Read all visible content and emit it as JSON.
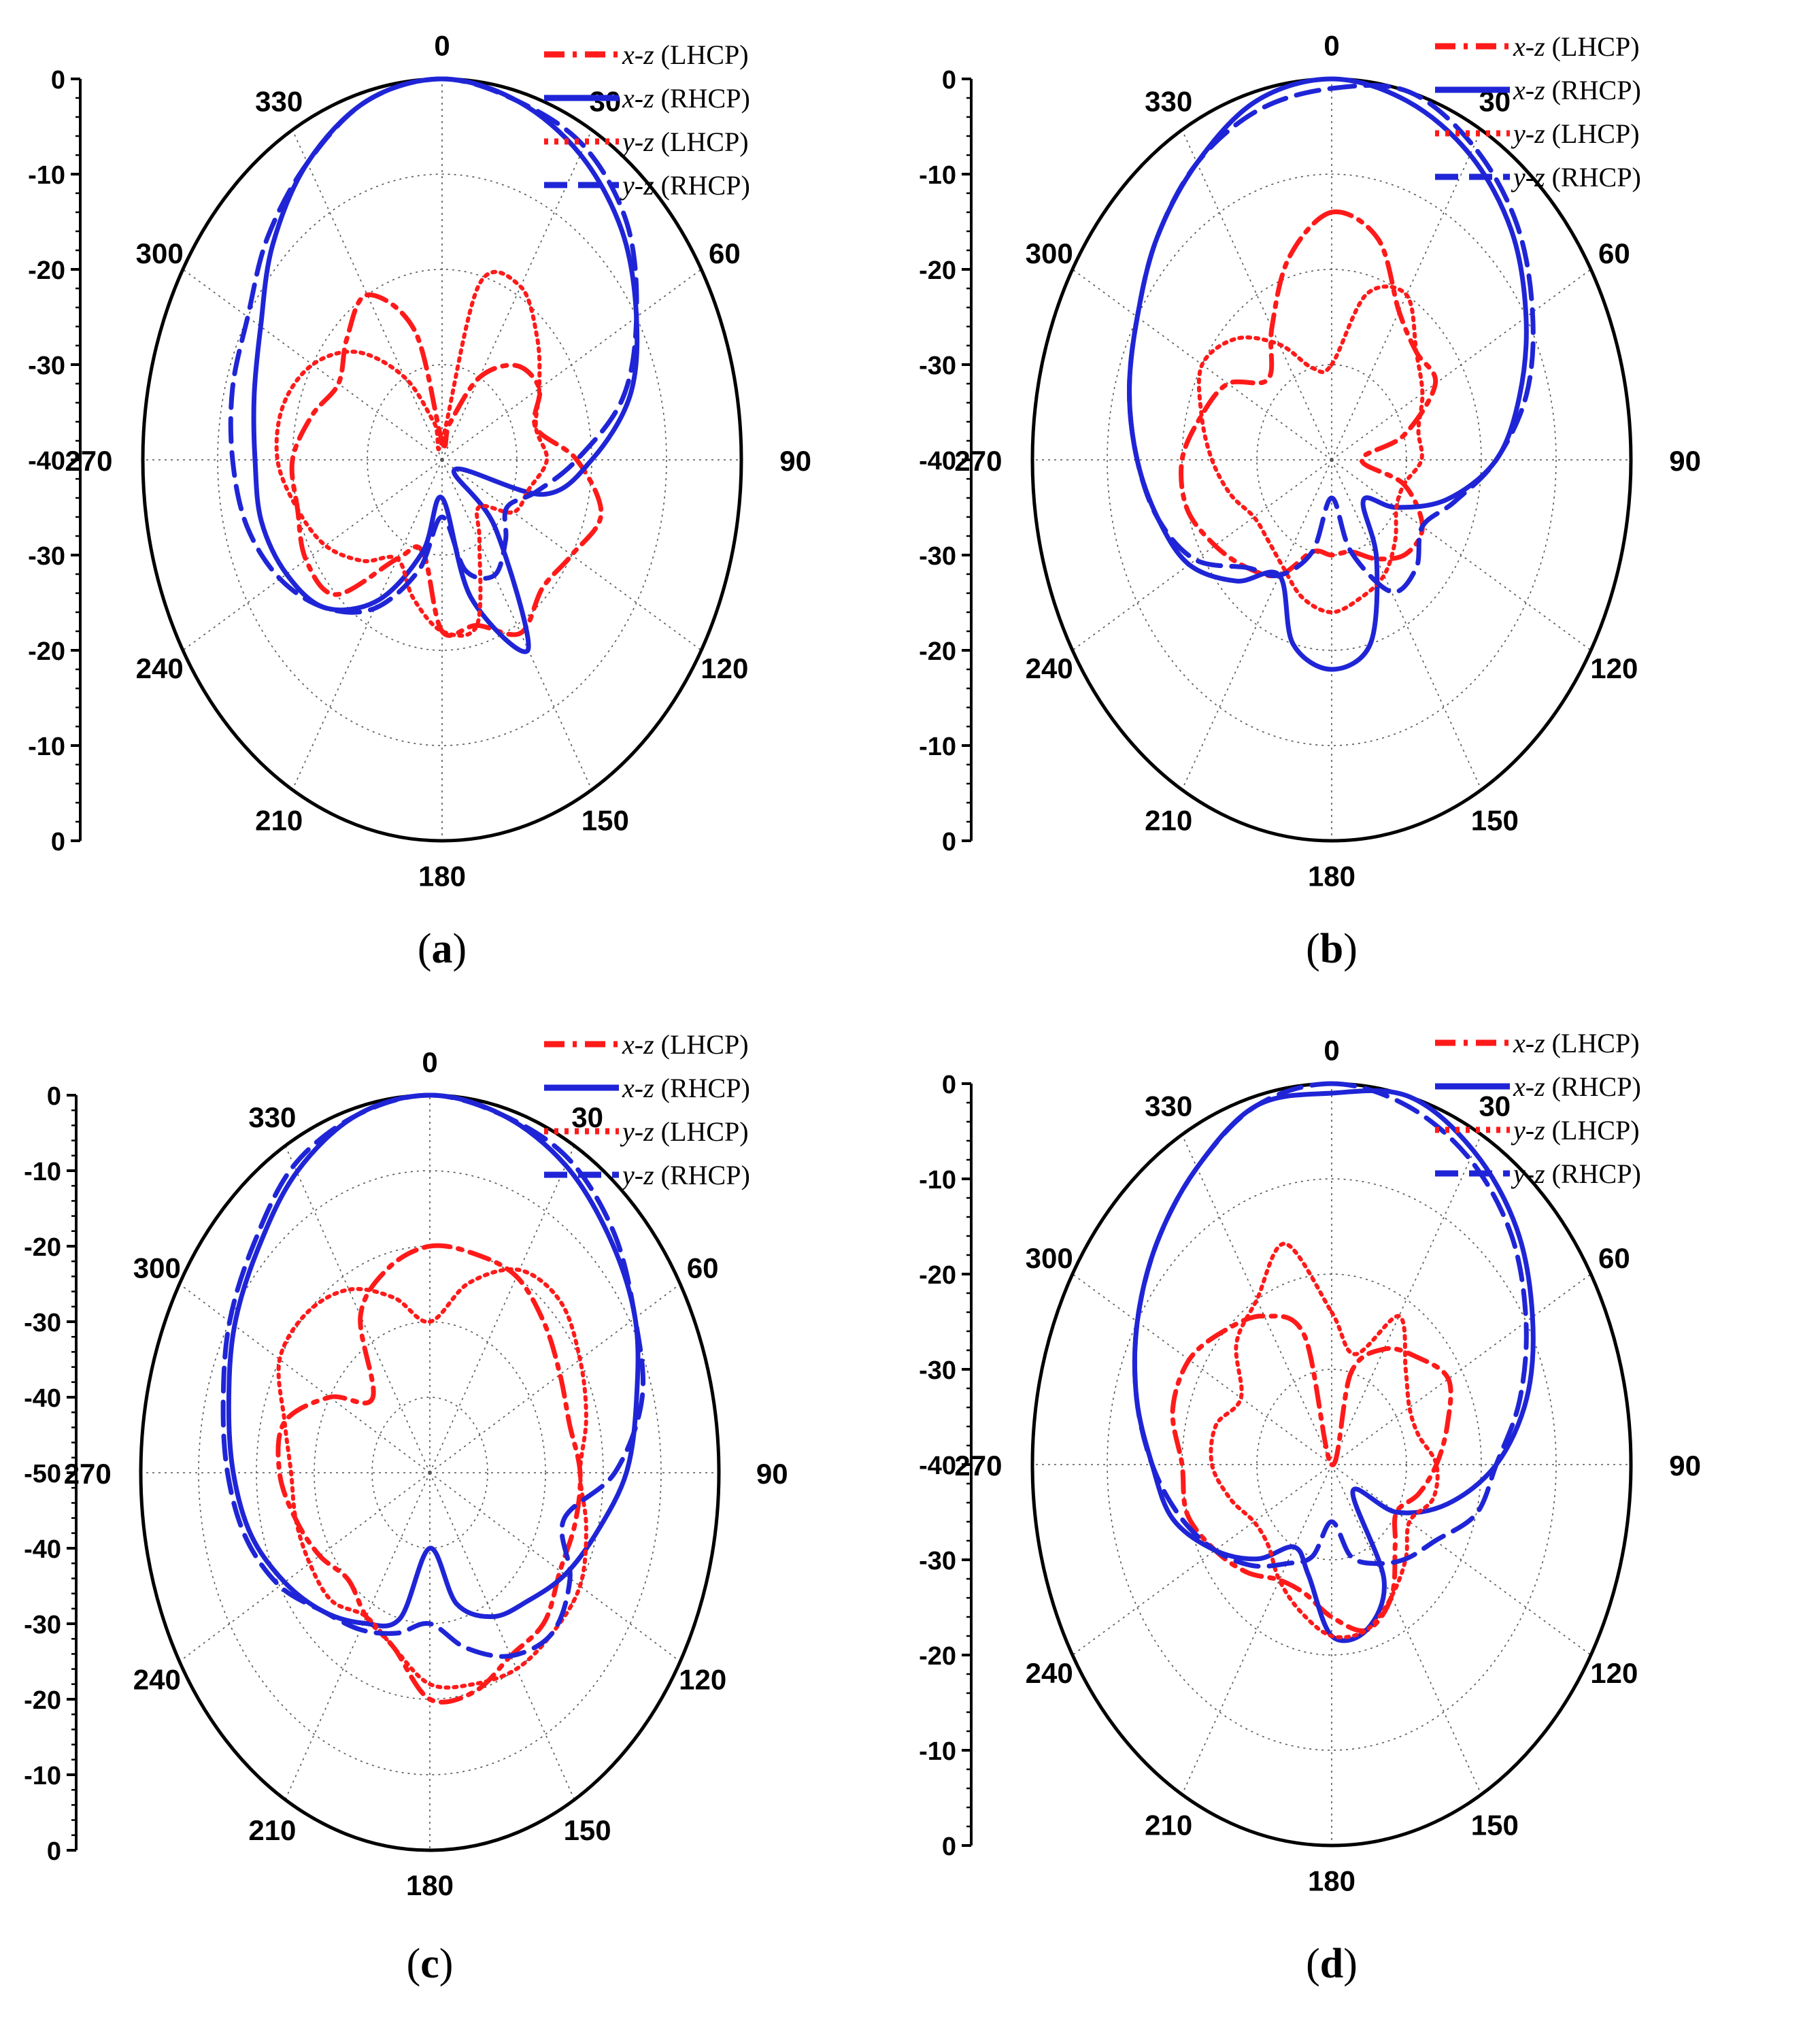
{
  "figure": {
    "colors": {
      "lhcp": "#ff1a1a",
      "rhcp": "#1f25d6",
      "axis": "#000000",
      "grid": "#555555"
    },
    "panel_labels": [
      "(a)",
      "(b)",
      "(c)",
      "(d)"
    ],
    "legend": [
      {
        "plane": "x-z",
        "pol": "(LHCP)",
        "color": "#ff1a1a",
        "dash": "dashdot"
      },
      {
        "plane": "x-z",
        "pol": "(RHCP)",
        "color": "#1f25d6",
        "dash": "solid"
      },
      {
        "plane": "y-z",
        "pol": "(LHCP)",
        "color": "#ff1a1a",
        "dash": "dotted"
      },
      {
        "plane": "y-z",
        "pol": "(RHCP)",
        "color": "#1f25d6",
        "dash": "dashed"
      }
    ],
    "angle_labels": [
      "0",
      "30",
      "60",
      "90",
      "120",
      "150",
      "180",
      "210",
      "240",
      "270",
      "300",
      "330"
    ]
  },
  "chart_data": [
    {
      "type": "polar",
      "panel": "(a)",
      "axis_ticks": [
        "0",
        "-10",
        "-20",
        "-30",
        "-40",
        "-30",
        "-20",
        "-10",
        "0"
      ],
      "r_range_db": [
        -40,
        0
      ],
      "series": [
        {
          "name": "x-z (LHCP)",
          "angles": [
            0,
            15,
            30,
            45,
            60,
            75,
            90,
            105,
            120,
            135,
            150,
            165,
            180,
            195,
            210,
            225,
            240,
            255,
            270,
            285,
            300,
            315,
            330,
            345
          ],
          "values": [
            -38,
            -36,
            -30,
            -26,
            -25,
            -27,
            -22,
            -18,
            -20,
            -21,
            -19,
            -22,
            -22,
            -30,
            -28,
            -20,
            -19,
            -20,
            -20,
            -22,
            -24,
            -22,
            -20,
            -26
          ]
        },
        {
          "name": "x-z (RHCP)",
          "angles": [
            0,
            15,
            30,
            45,
            60,
            75,
            90,
            105,
            120,
            135,
            150,
            165,
            180,
            195,
            210,
            225,
            240,
            255,
            270,
            285,
            300,
            315,
            330,
            345
          ],
          "values": [
            0,
            -1,
            -3,
            -6,
            -10,
            -14,
            -20,
            -26,
            -38,
            -30,
            -17,
            -25,
            -36,
            -30,
            -23,
            -18,
            -16,
            -15,
            -15,
            -14,
            -12,
            -8,
            -4,
            -1
          ]
        },
        {
          "name": "y-z (LHCP)",
          "angles": [
            0,
            15,
            30,
            45,
            60,
            75,
            90,
            105,
            120,
            135,
            150,
            165,
            180,
            195,
            210,
            225,
            240,
            255,
            270,
            285,
            300,
            315,
            330,
            345
          ],
          "values": [
            -38,
            -21,
            -19,
            -22,
            -25,
            -27,
            -26,
            -28,
            -29,
            -33,
            -30,
            -22,
            -22,
            -25,
            -28,
            -25,
            -22,
            -20,
            -18,
            -18,
            -20,
            -24,
            -30,
            -36
          ]
        },
        {
          "name": "y-z (RHCP)",
          "angles": [
            0,
            15,
            30,
            45,
            60,
            75,
            90,
            105,
            120,
            135,
            150,
            165,
            180,
            195,
            210,
            225,
            240,
            255,
            270,
            285,
            300,
            315,
            330,
            345
          ],
          "values": [
            0,
            -1,
            -2,
            -5,
            -10,
            -15,
            -22,
            -27,
            -30,
            -28,
            -26,
            -28,
            -34,
            -28,
            -22,
            -18,
            -15,
            -13,
            -12,
            -11,
            -10,
            -7,
            -4,
            -1
          ]
        }
      ]
    },
    {
      "type": "polar",
      "panel": "(b)",
      "axis_ticks": [
        "0",
        "-10",
        "-20",
        "-30",
        "-40",
        "-30",
        "-20",
        "-10",
        "0"
      ],
      "r_range_db": [
        -40,
        0
      ],
      "series": [
        {
          "name": "x-z (LHCP)",
          "angles": [
            0,
            15,
            30,
            45,
            60,
            75,
            90,
            105,
            120,
            135,
            150,
            165,
            180,
            195,
            210,
            225,
            240,
            255,
            270,
            285,
            300,
            315,
            330,
            345
          ],
          "values": [
            -14,
            -16,
            -22,
            -24,
            -24,
            -30,
            -36,
            -30,
            -26,
            -26,
            -28,
            -30,
            -30,
            -30,
            -26,
            -24,
            -22,
            -20,
            -20,
            -22,
            -24,
            -28,
            -24,
            -18
          ]
        },
        {
          "name": "x-z (RHCP)",
          "angles": [
            0,
            15,
            30,
            45,
            60,
            75,
            90,
            105,
            120,
            135,
            150,
            165,
            180,
            195,
            210,
            225,
            240,
            255,
            270,
            285,
            300,
            315,
            330,
            345
          ],
          "values": [
            0,
            -1,
            -3,
            -6,
            -10,
            -14,
            -18,
            -24,
            -30,
            -34,
            -28,
            -20,
            -18,
            -20,
            -26,
            -22,
            -18,
            -16,
            -14,
            -12,
            -10,
            -7,
            -4,
            -1
          ]
        },
        {
          "name": "y-z (LHCP)",
          "angles": [
            0,
            15,
            30,
            45,
            60,
            75,
            90,
            105,
            120,
            135,
            150,
            165,
            180,
            195,
            210,
            225,
            240,
            255,
            270,
            285,
            300,
            315,
            330,
            345
          ],
          "values": [
            -30,
            -22,
            -20,
            -24,
            -26,
            -28,
            -28,
            -30,
            -30,
            -28,
            -26,
            -25,
            -24,
            -25,
            -27,
            -28,
            -28,
            -26,
            -24,
            -22,
            -20,
            -22,
            -26,
            -30
          ]
        },
        {
          "name": "y-z (RHCP)",
          "angles": [
            0,
            15,
            30,
            45,
            60,
            75,
            90,
            105,
            120,
            135,
            150,
            165,
            180,
            195,
            210,
            225,
            240,
            255,
            270,
            285,
            300,
            315,
            330,
            345
          ],
          "values": [
            -1,
            0,
            -2,
            -5,
            -9,
            -13,
            -18,
            -23,
            -26,
            -24,
            -24,
            -30,
            -36,
            -30,
            -26,
            -24,
            -19,
            -16,
            -14,
            -12,
            -10,
            -7,
            -4,
            -2
          ]
        }
      ]
    },
    {
      "type": "polar",
      "panel": "(c)",
      "axis_ticks": [
        "0",
        "-10",
        "-20",
        "-30",
        "-40",
        "-50",
        "-40",
        "-30",
        "-20",
        "-10",
        "0"
      ],
      "r_range_db": [
        -50,
        0
      ],
      "series": [
        {
          "name": "x-z (LHCP)",
          "angles": [
            0,
            15,
            30,
            45,
            60,
            75,
            90,
            105,
            120,
            135,
            150,
            165,
            180,
            195,
            210,
            225,
            240,
            255,
            270,
            285,
            300,
            315,
            330,
            345
          ],
          "values": [
            -20,
            -20,
            -20,
            -22,
            -24,
            -25,
            -24,
            -24,
            -24,
            -22,
            -22,
            -20,
            -20,
            -26,
            -28,
            -30,
            -28,
            -26,
            -24,
            -24,
            -30,
            -36,
            -26,
            -22
          ]
        },
        {
          "name": "x-z (RHCP)",
          "angles": [
            0,
            15,
            30,
            45,
            60,
            75,
            90,
            105,
            120,
            135,
            150,
            165,
            180,
            195,
            210,
            225,
            240,
            255,
            270,
            285,
            300,
            315,
            330,
            345
          ],
          "values": [
            0,
            -1,
            -3,
            -6,
            -9,
            -13,
            -16,
            -20,
            -23,
            -26,
            -28,
            -32,
            -40,
            -30,
            -27,
            -24,
            -21,
            -18,
            -16,
            -14,
            -11,
            -8,
            -4,
            -1
          ]
        },
        {
          "name": "y-z (LHCP)",
          "angles": [
            0,
            15,
            30,
            45,
            60,
            75,
            90,
            105,
            120,
            135,
            150,
            165,
            180,
            195,
            210,
            225,
            240,
            255,
            270,
            285,
            300,
            315,
            330,
            345
          ],
          "values": [
            -30,
            -24,
            -19,
            -18,
            -20,
            -22,
            -24,
            -22,
            -20,
            -20,
            -20,
            -21,
            -22,
            -26,
            -28,
            -26,
            -26,
            -26,
            -26,
            -24,
            -20,
            -20,
            -22,
            -26
          ]
        },
        {
          "name": "y-z (RHCP)",
          "angles": [
            0,
            15,
            30,
            45,
            60,
            75,
            90,
            105,
            120,
            135,
            150,
            165,
            180,
            195,
            210,
            225,
            240,
            255,
            270,
            285,
            300,
            315,
            330,
            345
          ],
          "values": [
            0,
            -1,
            -2,
            -5,
            -9,
            -12,
            -18,
            -26,
            -22,
            -20,
            -22,
            -26,
            -30,
            -28,
            -26,
            -24,
            -20,
            -17,
            -15,
            -13,
            -10,
            -7,
            -3,
            -1
          ]
        }
      ]
    },
    {
      "type": "polar",
      "panel": "(d)",
      "axis_ticks": [
        "0",
        "-10",
        "-20",
        "-30",
        "-40",
        "-30",
        "-20",
        "-10",
        "0"
      ],
      "r_range_db": [
        -40,
        0
      ],
      "series": [
        {
          "name": "x-z (LHCP)",
          "angles": [
            0,
            15,
            30,
            45,
            60,
            75,
            90,
            105,
            120,
            135,
            150,
            165,
            180,
            195,
            210,
            225,
            240,
            255,
            270,
            285,
            300,
            315,
            330,
            345
          ],
          "values": [
            -40,
            -30,
            -26,
            -24,
            -22,
            -24,
            -26,
            -28,
            -30,
            -28,
            -24,
            -22,
            -24,
            -26,
            -26,
            -24,
            -22,
            -20,
            -20,
            -18,
            -18,
            -20,
            -22,
            -26
          ]
        },
        {
          "name": "x-z (RHCP)",
          "angles": [
            0,
            15,
            30,
            45,
            60,
            75,
            90,
            105,
            120,
            135,
            150,
            165,
            180,
            195,
            210,
            225,
            240,
            255,
            270,
            285,
            300,
            315,
            330,
            345
          ],
          "values": [
            -1,
            0,
            -2,
            -5,
            -9,
            -13,
            -18,
            -24,
            -30,
            -36,
            -26,
            -22,
            -22,
            -28,
            -30,
            -26,
            -22,
            -18,
            -16,
            -13,
            -10,
            -7,
            -4,
            -1
          ]
        },
        {
          "name": "y-z (LHCP)",
          "angles": [
            0,
            15,
            30,
            45,
            60,
            75,
            90,
            105,
            120,
            135,
            150,
            165,
            180,
            195,
            210,
            225,
            240,
            255,
            270,
            285,
            300,
            315,
            330,
            345
          ],
          "values": [
            -24,
            -28,
            -22,
            -26,
            -28,
            -28,
            -26,
            -26,
            -28,
            -26,
            -24,
            -22,
            -22,
            -24,
            -26,
            -28,
            -28,
            -26,
            -24,
            -24,
            -26,
            -22,
            -20,
            -16
          ]
        },
        {
          "name": "y-z (RHCP)",
          "angles": [
            0,
            15,
            30,
            45,
            60,
            75,
            90,
            105,
            120,
            135,
            150,
            165,
            180,
            195,
            210,
            225,
            240,
            255,
            270,
            285,
            300,
            315,
            330,
            345
          ],
          "values": [
            0,
            -1,
            -3,
            -6,
            -10,
            -14,
            -18,
            -20,
            -24,
            -26,
            -28,
            -30,
            -34,
            -30,
            -28,
            -25,
            -22,
            -19,
            -16,
            -13,
            -10,
            -7,
            -4,
            -1
          ]
        }
      ]
    }
  ]
}
